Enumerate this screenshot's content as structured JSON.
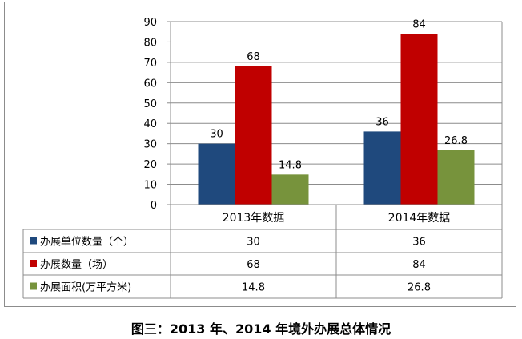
{
  "chart_data": {
    "type": "bar",
    "categories": [
      "2013年数据",
      "2014年数据"
    ],
    "series": [
      {
        "name": "办展单位数量（个）",
        "values": [
          30,
          36
        ],
        "labels": [
          "30",
          "36"
        ],
        "color": "#1f497d"
      },
      {
        "name": "办展数量（场）",
        "values": [
          68,
          84
        ],
        "labels": [
          "68",
          "84"
        ],
        "color": "#c00000"
      },
      {
        "name": "办展面积(万平方米)",
        "values": [
          14.8,
          26.8
        ],
        "labels": [
          "14.8",
          "26.8"
        ],
        "color": "#77933c"
      }
    ],
    "yticks": [
      "0",
      "10",
      "20",
      "30",
      "40",
      "50",
      "60",
      "70",
      "80",
      "90"
    ],
    "ylim": [
      0,
      90
    ],
    "grid": true,
    "legend": "data-table-left"
  },
  "caption": "图三：2013 年、2014 年境外办展总体情况"
}
